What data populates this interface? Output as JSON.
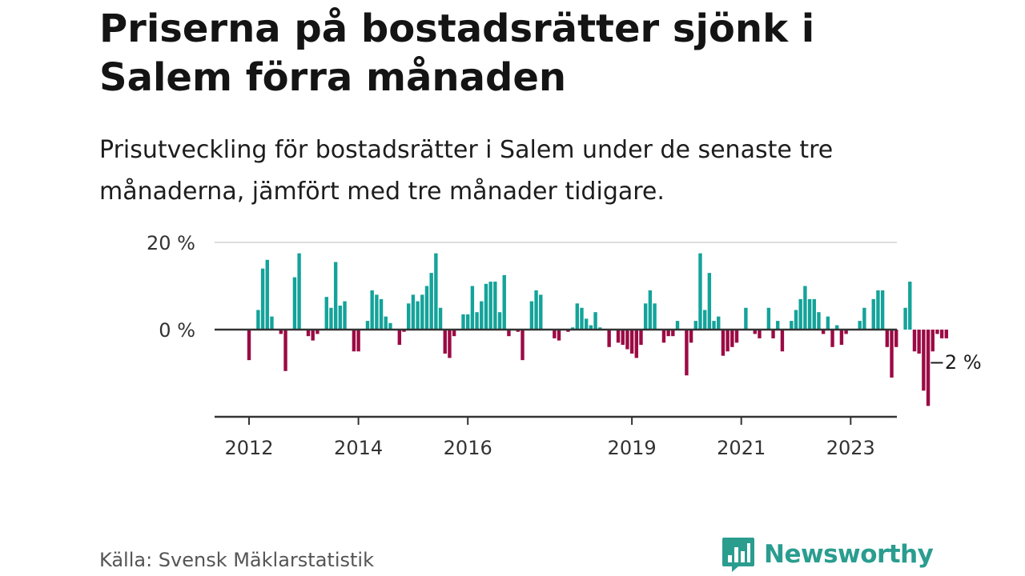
{
  "title": "Priserna på bostadsrätter sjönk i Salem förra månaden",
  "subtitle": "Prisutveckling för bostadsrätter i Salem under de senaste tre månaderna, jämfört med tre månader tidigare.",
  "source": "Källa: Svensk Mäklarstatistik",
  "brand": "Newsworthy",
  "colors": {
    "positive": "#14a39a",
    "negative": "#9b0a44",
    "zero_line": "#333333",
    "grid": "#dddddd",
    "brand": "#2a9d8f"
  },
  "chart_data": {
    "type": "bar",
    "title": "Priserna på bostadsrätter sjönk i Salem förra månaden",
    "xlabel": "",
    "ylabel": "",
    "ylim": [
      -20,
      20
    ],
    "y_ticks": [
      {
        "value": 20,
        "label": "20 %"
      },
      {
        "value": 0,
        "label": "0 %"
      }
    ],
    "x_ticks": [
      "2012",
      "2014",
      "2016",
      "2019",
      "2021",
      "2023"
    ],
    "x_tick_positions": [
      2012.0,
      2014.0,
      2016.0,
      2019.0,
      2021.0,
      2023.0
    ],
    "x_start": 2012.0,
    "x_step_months": 1,
    "end_label": "−2 %",
    "end_value": -2,
    "values": [
      -7,
      0,
      4.5,
      14,
      16,
      3,
      0,
      -1,
      -9.5,
      0,
      12,
      17.5,
      0,
      -1.5,
      -2.5,
      -1,
      0,
      7.5,
      5,
      15.5,
      5.5,
      6.5,
      0,
      -5,
      -5,
      0,
      2,
      9,
      8,
      7,
      3,
      1.5,
      0,
      -3.5,
      -0.5,
      6,
      8,
      6.5,
      8,
      10,
      13,
      17.5,
      5,
      -5.5,
      -6.5,
      -1.5,
      0,
      3.5,
      3.5,
      10,
      4,
      6.5,
      10.5,
      11,
      11,
      4,
      12.5,
      -1.5,
      0,
      -0.5,
      -7,
      0,
      6.5,
      9,
      8,
      0,
      0,
      -2,
      -2.5,
      0,
      -0.5,
      0.5,
      6,
      5,
      2.5,
      1,
      4,
      0.5,
      0,
      -4,
      0,
      -3,
      -3.5,
      -4.5,
      -5.5,
      -6.5,
      -3.5,
      6,
      9,
      6,
      0,
      -3,
      -1.5,
      -1.5,
      2,
      0,
      -10.5,
      -3,
      2,
      17.5,
      4.5,
      13,
      2,
      3,
      -6,
      -5,
      -4,
      -3,
      0,
      5,
      0,
      -1,
      -2,
      0,
      5,
      -2,
      2,
      -5,
      0,
      2,
      4.5,
      7,
      10,
      7,
      7,
      4,
      -1,
      3,
      -4,
      1,
      -3.5,
      -1,
      0,
      0,
      2,
      5,
      0,
      7,
      9,
      9,
      -4,
      -11,
      -4,
      0,
      5,
      11,
      -5,
      -5.5,
      -14,
      -17.5,
      -5,
      -1,
      -2,
      -2
    ]
  }
}
